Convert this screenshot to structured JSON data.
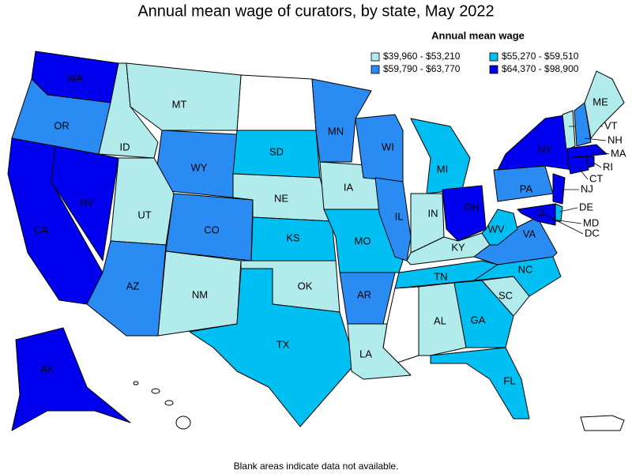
{
  "title": "Annual mean wage of curators, by state, May 2022",
  "legend": {
    "title": "Annual mean wage",
    "items": [
      {
        "label": "$39,960 - $53,210",
        "color": "#b2ebeb"
      },
      {
        "label": "$55,270 - $59,510",
        "color": "#00bff2"
      },
      {
        "label": "$59,790 - $63,770",
        "color": "#2a8cf2"
      },
      {
        "label": "$64,370 - $98,900",
        "color": "#0000ee"
      }
    ]
  },
  "states": [
    {
      "label": "WA",
      "class": 3
    },
    {
      "label": "OR",
      "class": 2
    },
    {
      "label": "CA",
      "class": 3
    },
    {
      "label": "NV",
      "class": 3
    },
    {
      "label": "ID",
      "class": 0
    },
    {
      "label": "MT",
      "class": 0
    },
    {
      "label": "WY",
      "class": 2
    },
    {
      "label": "UT",
      "class": 0
    },
    {
      "label": "AZ",
      "class": 2
    },
    {
      "label": "CO",
      "class": 2
    },
    {
      "label": "NM",
      "class": 0
    },
    {
      "label": "SD",
      "class": 1
    },
    {
      "label": "NE",
      "class": 0
    },
    {
      "label": "KS",
      "class": 1
    },
    {
      "label": "OK",
      "class": 0
    },
    {
      "label": "TX",
      "class": 1
    },
    {
      "label": "MN",
      "class": 2
    },
    {
      "label": "IA",
      "class": 0
    },
    {
      "label": "MO",
      "class": 1
    },
    {
      "label": "AR",
      "class": 2
    },
    {
      "label": "LA",
      "class": 0
    },
    {
      "label": "WI",
      "class": 2
    },
    {
      "label": "IL",
      "class": 2
    },
    {
      "label": "MI",
      "class": 1
    },
    {
      "label": "IN",
      "class": 0
    },
    {
      "label": "OH",
      "class": 3
    },
    {
      "label": "KY",
      "class": 0
    },
    {
      "label": "TN",
      "class": 1
    },
    {
      "label": "AL",
      "class": 0
    },
    {
      "label": "GA",
      "class": 1
    },
    {
      "label": "FL",
      "class": 1
    },
    {
      "label": "SC",
      "class": 0
    },
    {
      "label": "NC",
      "class": 1
    },
    {
      "label": "VA",
      "class": 2
    },
    {
      "label": "WV",
      "class": 1
    },
    {
      "label": "PA",
      "class": 2
    },
    {
      "label": "NY",
      "class": 3
    },
    {
      "label": "NJ",
      "class": 3
    },
    {
      "label": "DE",
      "class": 1
    },
    {
      "label": "MD",
      "class": 3
    },
    {
      "label": "DC",
      "class": 3
    },
    {
      "label": "VT",
      "class": 0
    },
    {
      "label": "NH",
      "class": 2
    },
    {
      "label": "ME",
      "class": 0
    },
    {
      "label": "MA",
      "class": 3
    },
    {
      "label": "CT",
      "class": 3
    },
    {
      "label": "RI",
      "class": 3
    },
    {
      "label": "AK",
      "class": 3
    }
  ],
  "footnote": "Blank areas indicate data not available."
}
